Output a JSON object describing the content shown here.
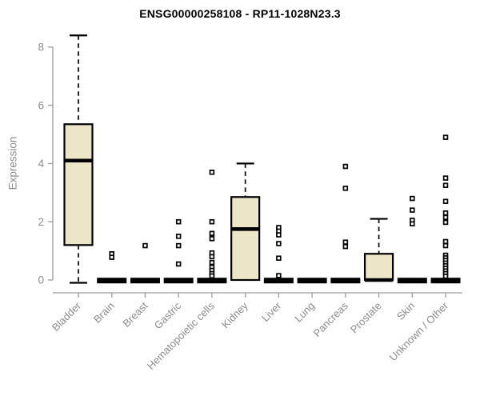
{
  "header": {
    "title": "ENSG00000258108 - RP11-1028N23.3"
  },
  "chart_data": {
    "type": "boxplot",
    "title": "ENSG00000258108 - RP11-1028N23.3",
    "ylabel": "Expression",
    "xlabel": "",
    "ylim": [
      0,
      8
    ],
    "yticks": [
      0,
      2,
      4,
      6,
      8
    ],
    "grid": false,
    "legend": false,
    "box_fill_color": "#ECE5C8",
    "axis_text_color": "#8a8a8a",
    "axis_line_color": "#9c9c9c",
    "outlier_marker": "open-square",
    "categories": [
      "Bladder",
      "Brain",
      "Breast",
      "Gastric",
      "Hematopoietic cells",
      "Kidney",
      "Liver",
      "Lung",
      "Pancreas",
      "Prostate",
      "Skin",
      "Unknown / Other"
    ],
    "boxes": [
      {
        "category": "Bladder",
        "min": 0,
        "q1": 1.2,
        "median": 4.1,
        "q3": 5.35,
        "max": 8.4,
        "outliers": []
      },
      {
        "category": "Brain",
        "min": 0,
        "q1": 0,
        "median": 0,
        "q3": 0,
        "max": 0,
        "outliers": [
          0.9,
          0.78
        ]
      },
      {
        "category": "Breast",
        "min": 0,
        "q1": 0,
        "median": 0,
        "q3": 0,
        "max": 0,
        "outliers": [
          1.18
        ]
      },
      {
        "category": "Gastric",
        "min": 0,
        "q1": 0,
        "median": 0,
        "q3": 0,
        "max": 0,
        "outliers": [
          2.0,
          1.5,
          1.18,
          0.55
        ]
      },
      {
        "category": "Hematopoietic cells",
        "min": 0,
        "q1": 0,
        "median": 0,
        "q3": 0,
        "max": 0,
        "outliers": [
          3.7,
          2.0,
          1.6,
          1.42,
          0.93,
          0.8,
          0.6,
          0.44,
          0.33,
          0.22,
          0.14
        ]
      },
      {
        "category": "Kidney",
        "min": 0,
        "q1": 0,
        "median": 1.75,
        "q3": 2.85,
        "max": 4.0,
        "outliers": []
      },
      {
        "category": "Liver",
        "min": 0,
        "q1": 0,
        "median": 0,
        "q3": 0,
        "max": 0,
        "outliers": [
          1.8,
          1.68,
          1.55,
          1.25,
          0.75,
          0.15
        ]
      },
      {
        "category": "Lung",
        "min": 0,
        "q1": 0,
        "median": 0,
        "q3": 0,
        "max": 0,
        "outliers": []
      },
      {
        "category": "Pancreas",
        "min": 0,
        "q1": 0,
        "median": 0,
        "q3": 0,
        "max": 0,
        "outliers": [
          3.9,
          3.15,
          1.3,
          1.15
        ]
      },
      {
        "category": "Prostate",
        "min": 0,
        "q1": 0,
        "median": 0,
        "q3": 0.9,
        "max": 2.1,
        "outliers": []
      },
      {
        "category": "Skin",
        "min": 0,
        "q1": 0,
        "median": 0,
        "q3": 0,
        "max": 0,
        "outliers": [
          2.8,
          2.4,
          2.05,
          1.93
        ]
      },
      {
        "category": "Unknown / Other",
        "min": 0,
        "q1": 0,
        "median": 0,
        "q3": 0,
        "max": 0,
        "outliers": [
          4.9,
          3.5,
          3.25,
          2.7,
          2.3,
          2.15,
          1.98,
          1.32,
          1.18,
          0.85,
          0.76,
          0.67,
          0.58,
          0.49,
          0.4,
          0.31,
          0.22,
          0.13
        ]
      }
    ]
  }
}
